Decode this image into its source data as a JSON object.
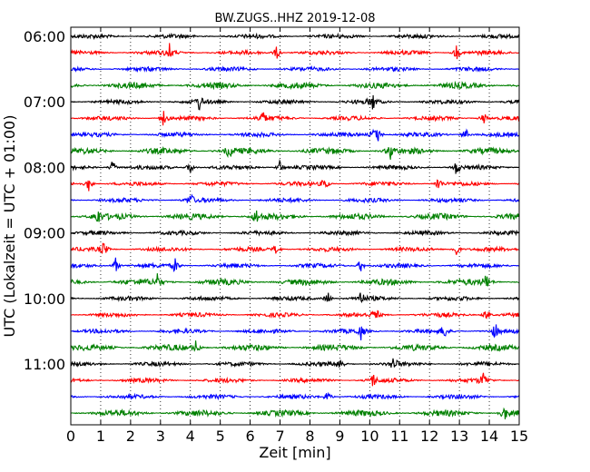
{
  "chart_data": {
    "type": "line",
    "title": "BW.ZUGS..HHZ 2019-12-08",
    "xlabel": "Zeit  [min]",
    "ylabel": "UTC (Lokalzeit = UTC + 01:00)",
    "xlim": [
      0,
      15
    ],
    "x_ticks": [
      "0",
      "1",
      "2",
      "3",
      "4",
      "5",
      "6",
      "7",
      "8",
      "9",
      "10",
      "11",
      "12",
      "13",
      "14",
      "15"
    ],
    "y_ticks": [
      "06:00",
      "07:00",
      "08:00",
      "09:00",
      "10:00",
      "11:00"
    ],
    "grid": true,
    "trace_minutes": 15,
    "trace_start_times": [
      "06:00",
      "06:15",
      "06:30",
      "06:45",
      "07:00",
      "07:15",
      "07:30",
      "07:45",
      "08:00",
      "08:15",
      "08:30",
      "08:45",
      "09:00",
      "09:15",
      "09:30",
      "09:45",
      "10:00",
      "10:15",
      "10:30",
      "10:45",
      "11:00",
      "11:15",
      "11:30",
      "11:45"
    ],
    "trace_colors": [
      "#000000",
      "#ff0000",
      "#0000ff",
      "#008000"
    ],
    "events_min": [
      [],
      [
        3.3,
        6.9,
        12.9
      ],
      [],
      [],
      [
        4.3,
        10.1
      ],
      [
        3.1,
        6.4,
        13.8
      ],
      [
        10.1,
        10.3,
        13.2
      ],
      [
        5.3,
        10.7
      ],
      [
        1.4,
        4.0,
        7.0,
        12.9
      ],
      [
        0.6,
        8.5,
        12.3
      ],
      [
        4.0
      ],
      [
        0.9,
        6.2
      ],
      [],
      [
        1.1,
        6.9,
        12.9
      ],
      [
        1.5,
        3.5,
        9.7
      ],
      [
        2.9,
        13.9
      ],
      [
        8.6,
        9.7
      ],
      [
        10.2,
        13.9
      ],
      [
        9.7,
        12.5,
        14.2
      ],
      [
        4.2
      ],
      [
        9.0,
        10.8
      ],
      [
        10.1,
        13.8
      ],
      [
        8.6
      ],
      [
        14.5
      ]
    ]
  }
}
